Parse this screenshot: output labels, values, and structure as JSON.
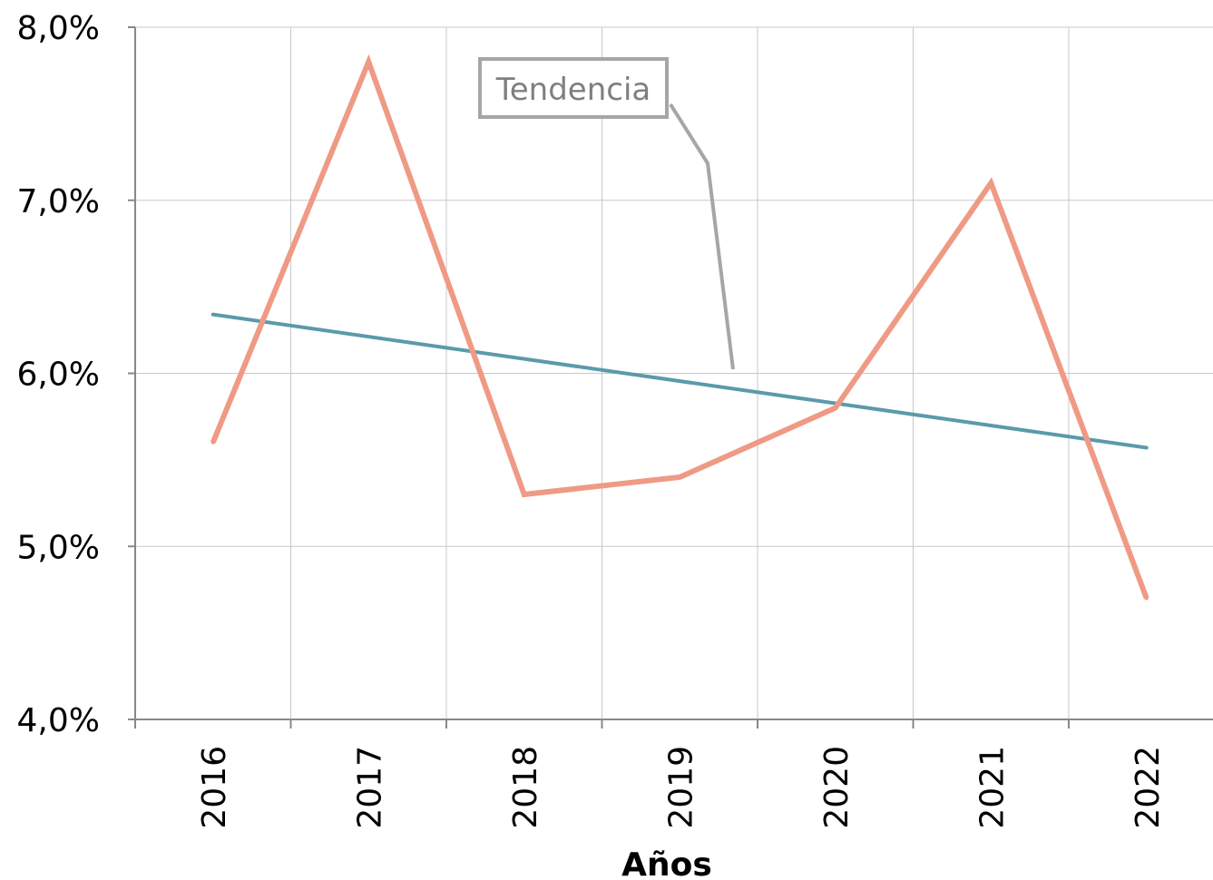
{
  "chart_data": {
    "type": "line",
    "categories": [
      "2016",
      "2017",
      "2018",
      "2019",
      "2020",
      "2021",
      "2022"
    ],
    "series": [
      {
        "values": [
          5.6,
          7.8,
          5.3,
          5.4,
          5.8,
          7.1,
          4.7
        ],
        "color": "#ef9a85"
      }
    ],
    "trendline": {
      "label": "Tendencia",
      "start": 6.34,
      "end": 5.57,
      "color": "#5a9aab"
    },
    "ylim": [
      4.0,
      8.0
    ],
    "yticks": [
      4.0,
      5.0,
      6.0,
      7.0,
      8.0
    ],
    "ytick_labels": [
      "4,0%",
      "5,0%",
      "6,0%",
      "7,0%",
      "8,0%"
    ],
    "xlabel": "Años",
    "grid": true,
    "colors": {
      "grid": "#c8c8c8",
      "axis": "#888888",
      "callout": "#a6a6a6",
      "callout_text": "#7f7f7f"
    }
  }
}
